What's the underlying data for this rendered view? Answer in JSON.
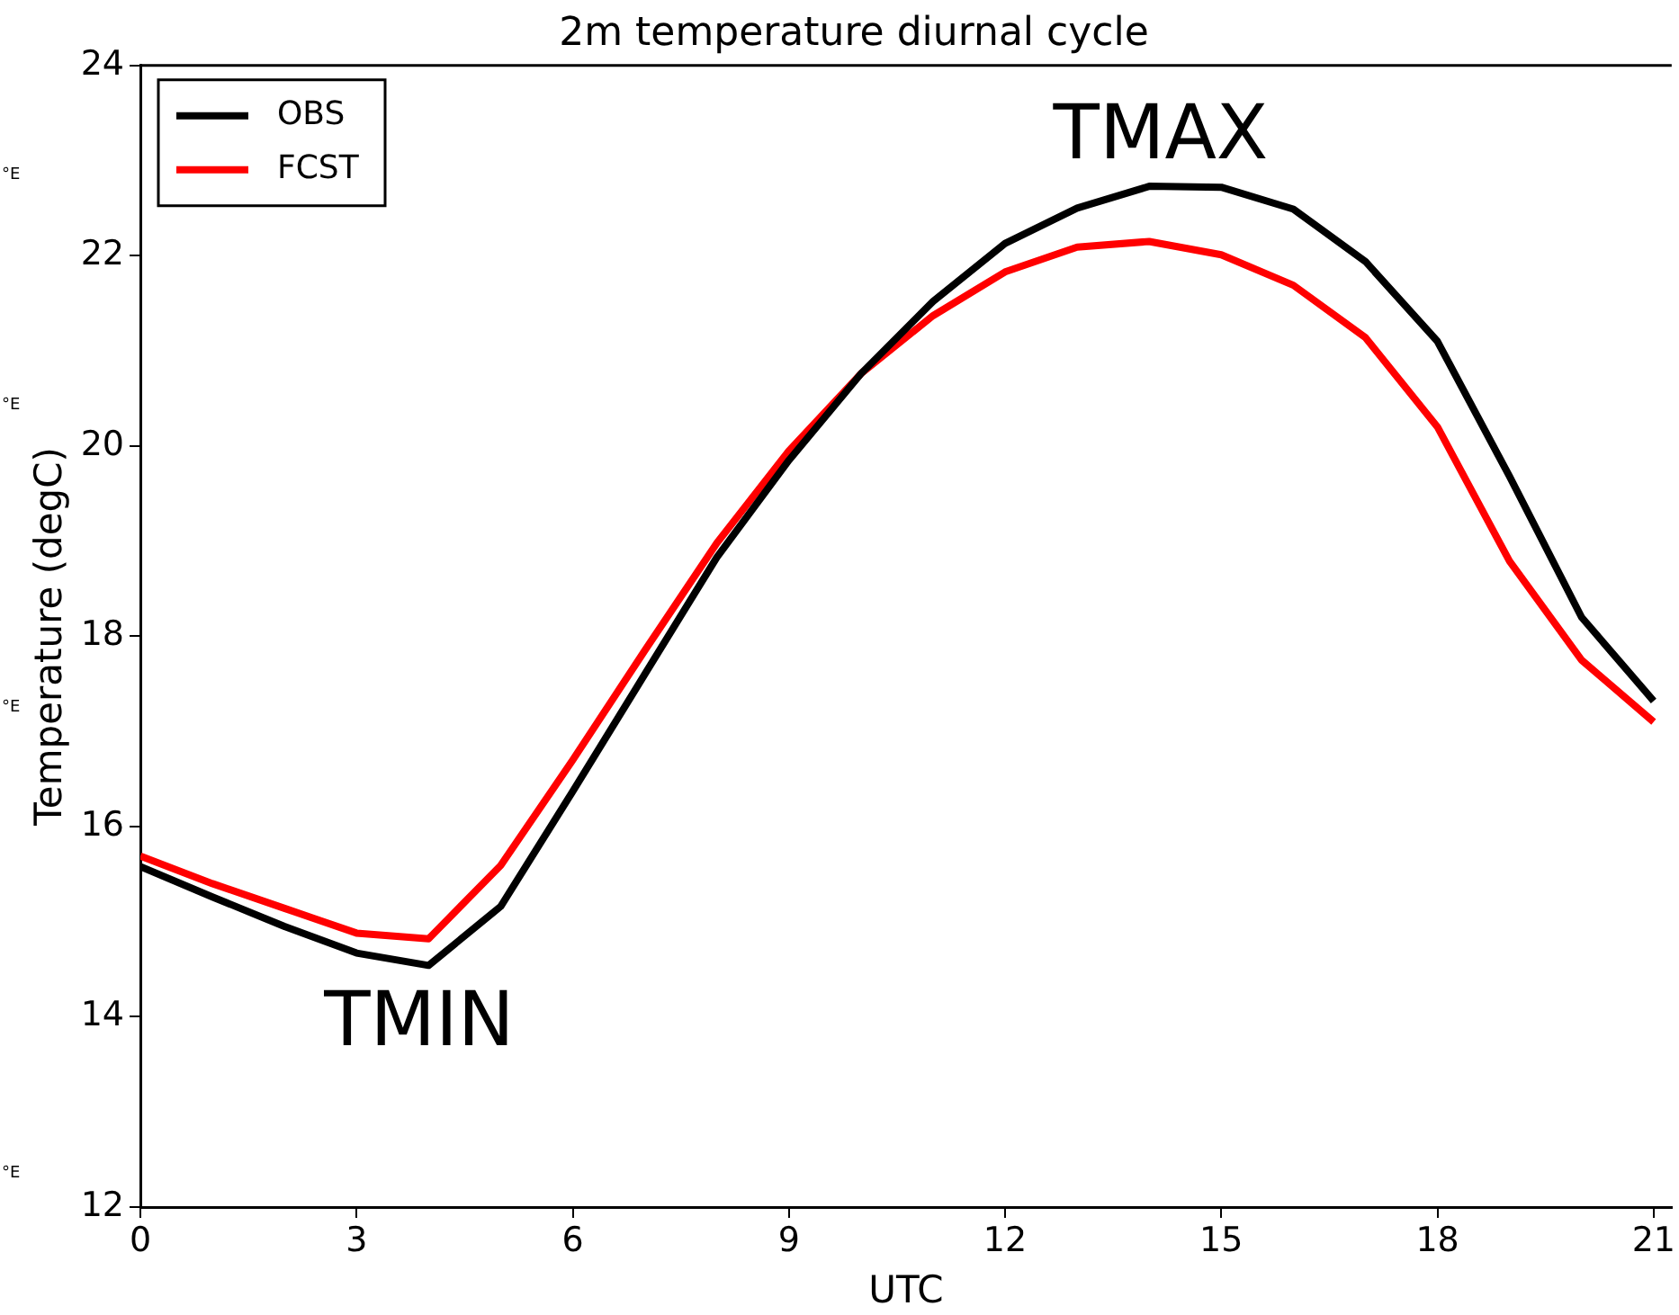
{
  "chart_data": {
    "type": "line",
    "title": "2m temperature diurnal cycle",
    "xlabel": "UTC",
    "ylabel": "Temperature (degC)",
    "x": [
      0,
      1,
      2,
      3,
      4,
      5,
      6,
      7,
      8,
      9,
      10,
      11,
      12,
      13,
      14,
      15,
      16,
      17,
      18,
      19,
      20,
      21
    ],
    "series": [
      {
        "name": "OBS",
        "color": "#000000",
        "values": [
          15.58,
          15.26,
          14.95,
          14.67,
          14.54,
          15.16,
          16.37,
          17.6,
          18.83,
          19.85,
          20.76,
          21.52,
          22.13,
          22.5,
          22.73,
          22.72,
          22.49,
          21.94,
          21.1,
          19.68,
          18.2,
          17.32
        ]
      },
      {
        "name": "FCST",
        "color": "#ff0000",
        "values": [
          15.69,
          15.4,
          15.14,
          14.88,
          14.82,
          15.59,
          16.7,
          17.85,
          18.98,
          19.95,
          20.76,
          21.37,
          21.83,
          22.09,
          22.15,
          22.01,
          21.69,
          21.14,
          20.2,
          18.79,
          17.75,
          17.1
        ]
      }
    ],
    "xlim": [
      0,
      21.25
    ],
    "xticks": [
      0,
      3,
      6,
      9,
      12,
      15,
      18,
      21
    ],
    "ylim": [
      12,
      24
    ],
    "yticks": [
      12,
      14,
      16,
      18,
      20,
      22,
      24
    ],
    "legend": "top left",
    "marker": "none",
    "line_style": "solid",
    "annotations": [
      "TMIN",
      "TMAX",
      "°E",
      "°E",
      "°E",
      "°E"
    ]
  }
}
